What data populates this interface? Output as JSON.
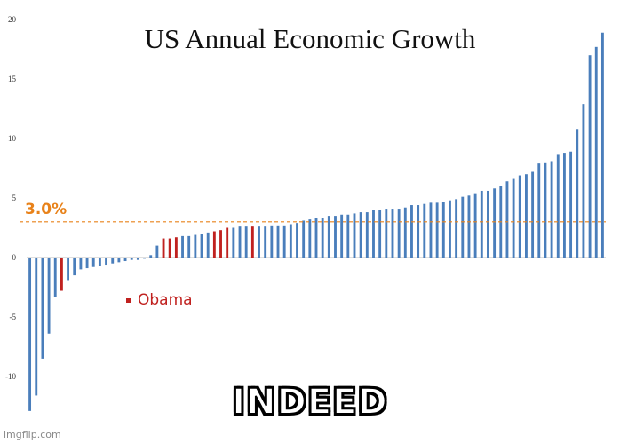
{
  "chart_data": {
    "type": "bar",
    "title": "US Annual Economic Growth",
    "xlabel": "",
    "ylabel": "",
    "ylim": [
      -13,
      20
    ],
    "yticks": [
      20,
      15,
      10,
      5,
      0,
      -5,
      -10
    ],
    "grid": false,
    "reference_line": {
      "value": 3.0,
      "label": "3.0%",
      "color": "#e8821a",
      "style": "dashed"
    },
    "legend": {
      "label": "Obama",
      "color": "#c0211f",
      "placement": "middle-left"
    },
    "series": [
      {
        "values": [
          -12.9,
          -11.6,
          -8.5,
          -6.4,
          -3.3,
          -2.8,
          -1.9,
          -1.5,
          -1.0,
          -0.9,
          -0.8,
          -0.7,
          -0.6,
          -0.5,
          -0.4,
          -0.3,
          -0.2,
          -0.2,
          -0.1,
          0.2,
          1.0,
          1.6,
          1.6,
          1.7,
          1.8,
          1.8,
          1.9,
          2.0,
          2.1,
          2.2,
          2.3,
          2.5,
          2.5,
          2.6,
          2.6,
          2.6,
          2.6,
          2.6,
          2.7,
          2.7,
          2.7,
          2.8,
          2.9,
          3.1,
          3.2,
          3.3,
          3.3,
          3.5,
          3.5,
          3.6,
          3.6,
          3.7,
          3.8,
          3.8,
          4.0,
          4.0,
          4.1,
          4.1,
          4.1,
          4.2,
          4.4,
          4.4,
          4.5,
          4.6,
          4.6,
          4.7,
          4.8,
          4.9,
          5.1,
          5.2,
          5.4,
          5.6,
          5.6,
          5.8,
          6.0,
          6.4,
          6.6,
          6.9,
          7.0,
          7.2,
          7.9,
          8.0,
          8.1,
          8.7,
          8.8,
          8.9,
          10.8,
          12.9,
          17.0,
          17.7,
          18.9
        ],
        "highlight_indices": [
          5,
          21,
          22,
          23,
          29,
          30,
          31,
          35
        ]
      }
    ],
    "colors": {
      "bar": "#4a7ebb",
      "highlight": "#c0211f"
    }
  },
  "caption": "INDEED",
  "watermark": "imgflip.com"
}
